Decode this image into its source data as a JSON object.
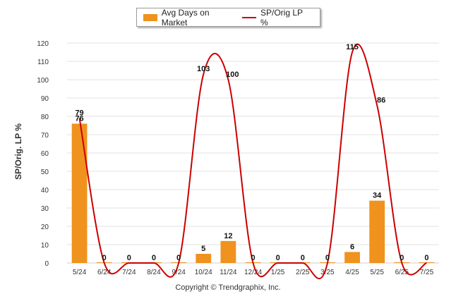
{
  "chart_data": {
    "type": "bar",
    "categories": [
      "5/24",
      "6/24",
      "7/24",
      "8/24",
      "9/24",
      "10/24",
      "11/24",
      "12/24",
      "1/25",
      "2/25",
      "3/25",
      "4/25",
      "5/25",
      "6/25",
      "7/25"
    ],
    "series": [
      {
        "name": "Avg Days on Market",
        "type": "bar",
        "color": "#f0921e",
        "values": [
          76,
          0,
          0,
          0,
          0,
          5,
          12,
          0,
          0,
          0,
          0,
          6,
          34,
          0,
          0
        ]
      },
      {
        "name": "SP/Orig LP %",
        "type": "line",
        "color": "#cc0000",
        "values": [
          79,
          0,
          0,
          0,
          0,
          103,
          100,
          0,
          0,
          0,
          0,
          115,
          86,
          0,
          0
        ]
      }
    ],
    "ylabel": "SP/Orig. LP %",
    "xlabel": "",
    "ylim": [
      0,
      120
    ],
    "yticks": [
      0,
      10,
      20,
      30,
      40,
      50,
      60,
      70,
      80,
      90,
      100,
      110,
      120
    ],
    "grid": true,
    "legend_position": "top-center"
  },
  "footer": {
    "copyright": "Copyright © Trendgraphix, Inc."
  }
}
